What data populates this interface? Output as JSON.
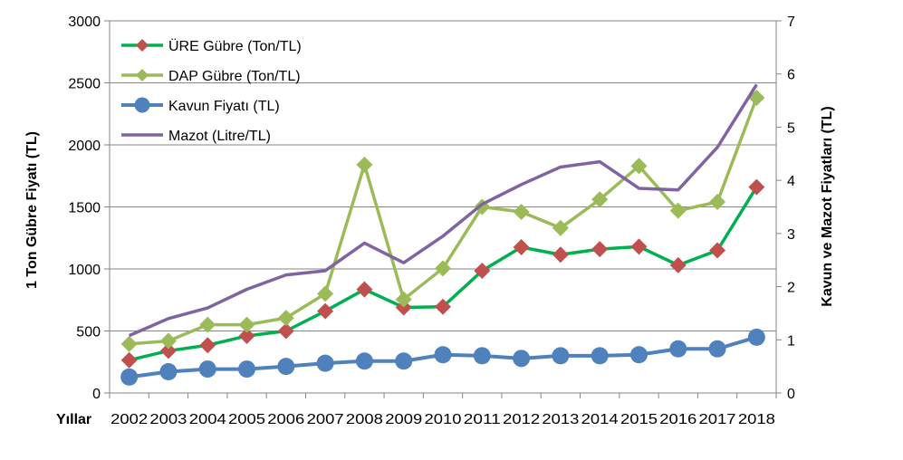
{
  "chart_data": {
    "type": "line",
    "xlabel": "Yıllar",
    "ylabel_left": "1 Ton Gübre Fiyatı (TL)",
    "ylabel_right": "Kavun ve Mazot Fiyatları (TL)",
    "ylim_left": [
      0,
      3000
    ],
    "ylim_right": [
      0,
      7
    ],
    "yticks_left": [
      "0",
      "500",
      "1000",
      "1500",
      "2000",
      "2500",
      "3000"
    ],
    "yticks_right": [
      "0",
      "1",
      "2",
      "3",
      "4",
      "5",
      "6",
      "7"
    ],
    "categories": [
      "2002",
      "2003",
      "2004",
      "2005",
      "2006",
      "2007",
      "2008",
      "2009",
      "2010",
      "2011",
      "2012",
      "2013",
      "2014",
      "2015",
      "2016",
      "2017",
      "2018"
    ],
    "grid": "horizontal",
    "legend_position": "top-left",
    "series": [
      {
        "name": "ÜRE Gübre (Ton/TL)",
        "axis": "left",
        "color": "#00b050",
        "marker": "diamond",
        "marker_color": "#c0504d",
        "values": [
          265,
          340,
          385,
          460,
          500,
          660,
          835,
          690,
          695,
          985,
          1175,
          1115,
          1160,
          1180,
          1030,
          1150,
          1660
        ]
      },
      {
        "name": "DAP Gübre (Ton/TL)",
        "axis": "left",
        "color": "#9bbb59",
        "marker": "diamond",
        "marker_color": "#9bbb59",
        "values": [
          395,
          420,
          550,
          550,
          605,
          800,
          1840,
          755,
          1005,
          1500,
          1460,
          1330,
          1560,
          1830,
          1470,
          1540,
          2380
        ]
      },
      {
        "name": "Kavun Fiyatı (TL)",
        "axis": "right",
        "color": "#4f81bd",
        "marker": "circle",
        "marker_color": "#4f81bd",
        "values": [
          0.3,
          0.4,
          0.45,
          0.45,
          0.5,
          0.56,
          0.6,
          0.6,
          0.72,
          0.7,
          0.65,
          0.7,
          0.7,
          0.72,
          0.83,
          0.83,
          1.05
        ]
      },
      {
        "name": "Mazot (Litre/TL)",
        "axis": "right",
        "color": "#8064a2",
        "marker": "none",
        "marker_color": "#8064a2",
        "values": [
          1.08,
          1.4,
          1.6,
          1.95,
          2.22,
          2.3,
          2.82,
          2.45,
          2.95,
          3.55,
          3.92,
          4.25,
          4.35,
          3.85,
          3.82,
          4.62,
          5.8
        ]
      }
    ]
  }
}
